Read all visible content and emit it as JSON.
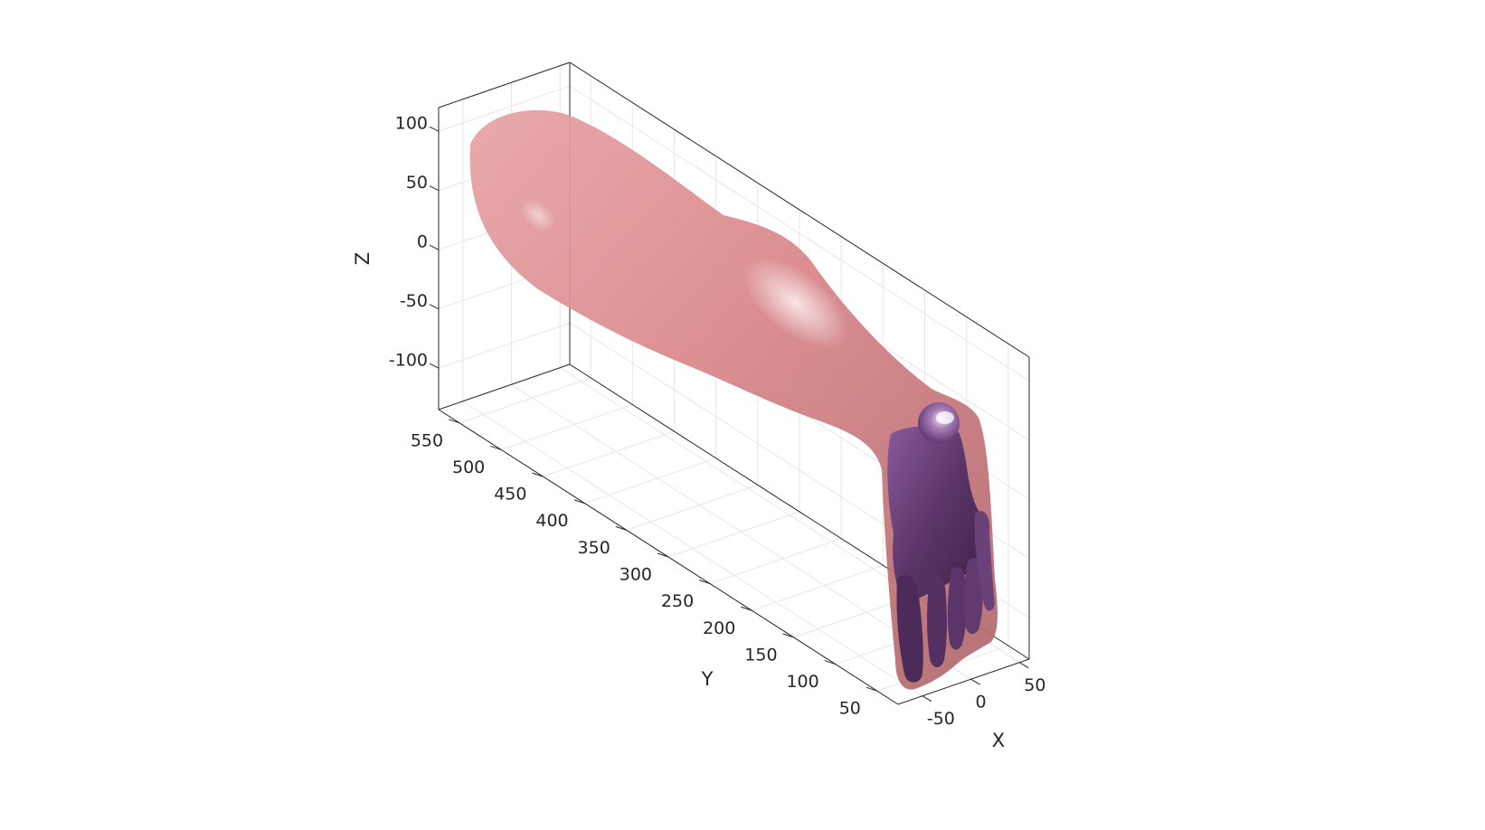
{
  "chart_data": {
    "type": "3d-surface",
    "view": "isometric-3d",
    "axes": {
      "x": {
        "label": "X",
        "ticks": [
          -50,
          0,
          50
        ],
        "lim": [
          -75,
          60
        ]
      },
      "y": {
        "label": "Y",
        "ticks": [
          50,
          100,
          150,
          200,
          250,
          300,
          350,
          400,
          450,
          500,
          550
        ],
        "lim": [
          25,
          575
        ]
      },
      "z": {
        "label": "Z",
        "ticks": [
          -100,
          -50,
          0,
          50,
          100
        ],
        "lim": [
          -135,
          120
        ]
      }
    },
    "grid": true,
    "box": true,
    "series": [
      {
        "name": "skin",
        "description": "semi-transparent lower leg surface",
        "color": "#d98b8e"
      },
      {
        "name": "bones",
        "description": "foot bone surface",
        "color": "#5a3468"
      }
    ]
  }
}
